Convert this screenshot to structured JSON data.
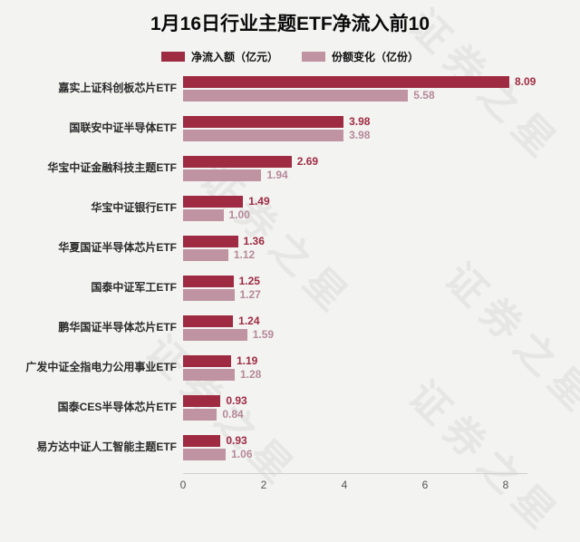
{
  "title": "1月16日行业主题ETF净流入前10",
  "watermark": {
    "text": "证券之星"
  },
  "legend": [
    {
      "label": "净流入额（亿元）",
      "color": "#9e2b41"
    },
    {
      "label": "份额变化（亿份）",
      "color": "#bf93a1"
    }
  ],
  "chart_data": {
    "type": "bar",
    "orientation": "horizontal",
    "title": "1月16日行业主题ETF净流入前10",
    "categories": [
      "嘉实上证科创板芯片ETF",
      "国联安中证半导体ETF",
      "华宝中证金融科技主题ETF",
      "华宝中证银行ETF",
      "华夏国证半导体芯片ETF",
      "国泰中证军工ETF",
      "鹏华国证半导体芯片ETF",
      "广发中证全指电力公用事业ETF",
      "国泰CES半导体芯片ETF",
      "易方达中证人工智能主题ETF"
    ],
    "series": [
      {
        "name": "净流入额（亿元）",
        "color": "#9e2b41",
        "values": [
          8.09,
          3.98,
          2.69,
          1.49,
          1.36,
          1.25,
          1.24,
          1.19,
          0.93,
          0.93
        ]
      },
      {
        "name": "份额变化（亿份）",
        "color": "#bf93a1",
        "values": [
          5.58,
          3.98,
          1.94,
          1.0,
          1.12,
          1.27,
          1.59,
          1.28,
          0.84,
          1.06
        ]
      }
    ],
    "xlim": [
      0,
      8
    ],
    "x_ticks": [
      0,
      2,
      4,
      6,
      8
    ],
    "legend_position": "top",
    "grid": false
  }
}
